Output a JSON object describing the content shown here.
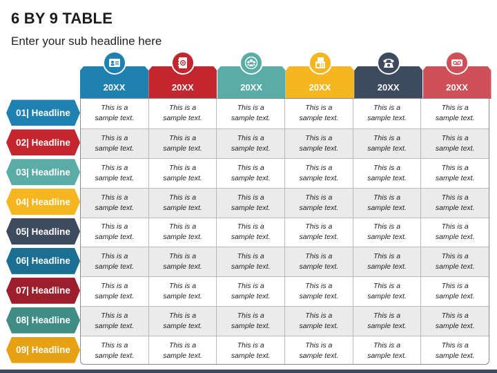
{
  "title": "6 BY 9 TABLE",
  "subtitle": "Enter your sub headline here",
  "columns": [
    {
      "label": "20XX",
      "icon": "contact-card-icon",
      "color": "#1f80b2"
    },
    {
      "label": "20XX",
      "icon": "address-book-icon",
      "color": "#c3262e"
    },
    {
      "label": "20XX",
      "icon": "group-icon",
      "color": "#5aaca7"
    },
    {
      "label": "20XX",
      "icon": "fax-icon",
      "color": "#f5b620"
    },
    {
      "label": "20XX",
      "icon": "telephone-icon",
      "color": "#3e4a5e"
    },
    {
      "label": "20XX",
      "icon": "voicemail-icon",
      "color": "#d0505a"
    }
  ],
  "rows": [
    {
      "label": "01| Headline",
      "color": "#1f80b2"
    },
    {
      "label": "02| Headline",
      "color": "#c3262e"
    },
    {
      "label": "03| Headline",
      "color": "#5aaca7"
    },
    {
      "label": "04| Headline",
      "color": "#f5b620"
    },
    {
      "label": "05| Headline",
      "color": "#3e4a5e"
    },
    {
      "label": "06| Headline",
      "color": "#1a6f93"
    },
    {
      "label": "07| Headline",
      "color": "#9d1f2e"
    },
    {
      "label": "08| Headline",
      "color": "#3f8d85"
    },
    {
      "label": "09| Headline",
      "color": "#e6a213"
    }
  ],
  "cell_text": {
    "line1": "This is a",
    "line2": "sample text."
  }
}
